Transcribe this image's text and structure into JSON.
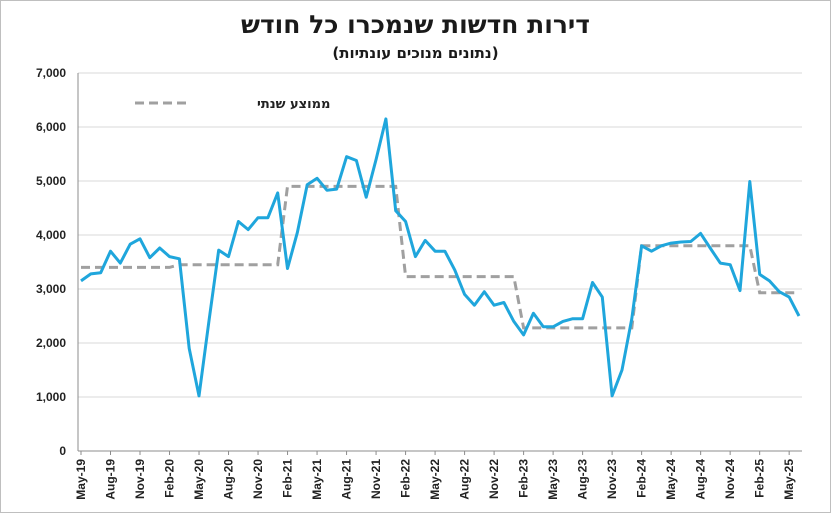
{
  "chart_data": {
    "type": "line",
    "title": "דירות חדשות שנמכרו כל חודש",
    "subtitle": "(נתונים מנוכים עונתיות)",
    "ylim": [
      0,
      7000
    ],
    "y_ticks": [
      "0",
      "1,000",
      "2,000",
      "3,000",
      "4,000",
      "5,000",
      "6,000",
      "7,000"
    ],
    "y_tick_values": [
      0,
      1000,
      2000,
      3000,
      4000,
      5000,
      6000,
      7000
    ],
    "x_tick_labels": [
      "May-19",
      "Aug-19",
      "Nov-19",
      "Feb-20",
      "May-20",
      "Aug-20",
      "Nov-20",
      "Feb-21",
      "May-21",
      "Aug-21",
      "Nov-21",
      "Feb-22",
      "May-22",
      "Aug-22",
      "Nov-22",
      "Feb-23",
      "May-23",
      "Aug-23",
      "Nov-23",
      "Feb-24",
      "May-24",
      "Aug-24",
      "Nov-24",
      "Feb-25",
      "May-25"
    ],
    "grid": "horizontal",
    "legend": {
      "placement": "top-left",
      "label": "ממוצע שנתי"
    },
    "colors": {
      "monthly": "#1fa6dc",
      "annual_average": "#a0a0a0"
    },
    "series": [
      {
        "values": [
          3150,
          3280,
          3300,
          3700,
          3480,
          3830,
          3930,
          3580,
          3760,
          3600,
          3560,
          1900,
          1020,
          2400,
          3720,
          3600,
          4250,
          4100,
          4320,
          4320,
          4780,
          3380,
          4050,
          4930,
          5050,
          4830,
          4850,
          5450,
          5380,
          4700,
          5400,
          6150,
          4450,
          4250,
          3600,
          3900,
          3700,
          3700,
          3350,
          2900,
          2700,
          2950,
          2700,
          2750,
          2400,
          2150,
          2550,
          2300,
          2300,
          2400,
          2450,
          2450,
          3120,
          2850,
          1020,
          1500,
          2450,
          3800,
          3700,
          3800,
          3850,
          3870,
          3880,
          4030,
          3750,
          3480,
          3450,
          2970,
          4990,
          3270,
          3150,
          2950,
          2850,
          2500
        ]
      },
      {
        "values": [
          3400,
          3400,
          3400,
          3400,
          3400,
          3400,
          3400,
          3400,
          3400,
          3400,
          3450,
          3450,
          3450,
          3450,
          3450,
          3450,
          3450,
          3450,
          3450,
          3450,
          3450,
          4900,
          4900,
          4900,
          4900,
          4900,
          4900,
          4900,
          4900,
          4900,
          4900,
          4900,
          4900,
          3230,
          3230,
          3230,
          3230,
          3230,
          3230,
          3230,
          3230,
          3230,
          3230,
          3230,
          3230,
          2280,
          2280,
          2280,
          2280,
          2280,
          2280,
          2280,
          2280,
          2280,
          2280,
          2280,
          2280,
          3800,
          3800,
          3800,
          3800,
          3800,
          3800,
          3800,
          3800,
          3800,
          3800,
          3800,
          3800,
          2930,
          2930,
          2930,
          2930,
          2930
        ]
      }
    ]
  }
}
